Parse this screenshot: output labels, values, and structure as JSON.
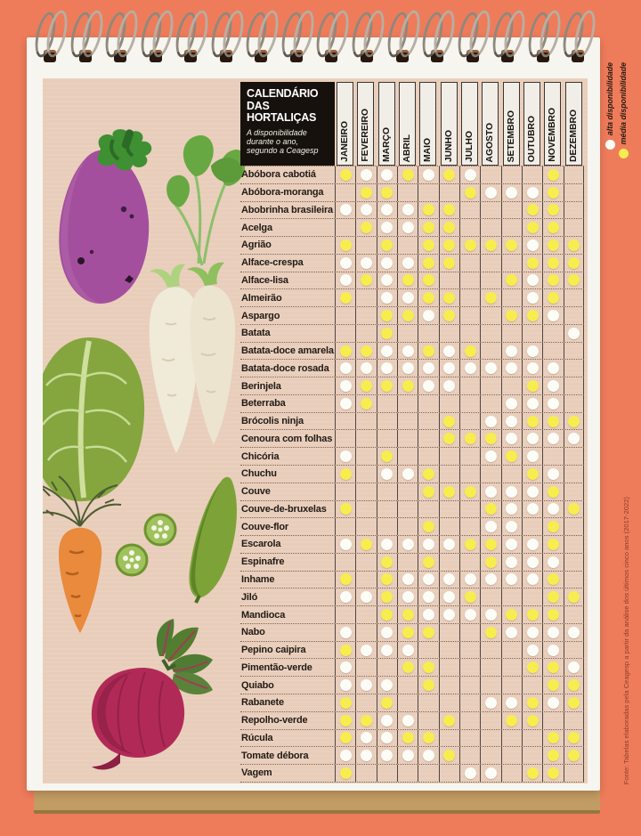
{
  "header": {
    "title_line1": "CALENDÁRIO",
    "title_line2": "DAS HORTALIÇAS",
    "subtitle": "A disponibilidade durante o ano, segundo a Ceagesp"
  },
  "legend": {
    "high_label": "alta disponibilidade",
    "medium_label": "média disponibilidade"
  },
  "months": [
    "JANEIRO",
    "FEVEREIRO",
    "MARÇO",
    "ABRIL",
    "MAIO",
    "JUNHO",
    "JULHO",
    "AGOSTO",
    "SETEMBRO",
    "OUTUBRO",
    "NOVEMBRO",
    "DEZEMBRO"
  ],
  "rows": [
    {
      "name": "Abóbora cabotiá",
      "months": [
        "media",
        "alta",
        "alta",
        "media",
        "alta",
        "media",
        "alta",
        "",
        "",
        "",
        "media",
        ""
      ]
    },
    {
      "name": "Abóbora-moranga",
      "months": [
        "",
        "media",
        "media",
        "",
        "",
        "",
        "media",
        "alta",
        "alta",
        "alta",
        "media",
        ""
      ]
    },
    {
      "name": "Abobrinha brasileira",
      "months": [
        "alta",
        "alta",
        "alta",
        "alta",
        "media",
        "media",
        "",
        "",
        "",
        "media",
        "media",
        ""
      ]
    },
    {
      "name": "Acelga",
      "months": [
        "",
        "media",
        "alta",
        "alta",
        "media",
        "media",
        "",
        "",
        "",
        "media",
        "media",
        ""
      ]
    },
    {
      "name": "Agrião",
      "months": [
        "media",
        "",
        "media",
        "",
        "media",
        "media",
        "media",
        "media",
        "media",
        "alta",
        "media",
        "media"
      ]
    },
    {
      "name": "Alface-crespa",
      "months": [
        "alta",
        "alta",
        "alta",
        "alta",
        "media",
        "media",
        "",
        "",
        "",
        "media",
        "media",
        "media"
      ]
    },
    {
      "name": "Alface-lisa",
      "months": [
        "alta",
        "media",
        "alta",
        "media",
        "media",
        "",
        "",
        "",
        "media",
        "alta",
        "media",
        "media"
      ]
    },
    {
      "name": "Almeirão",
      "months": [
        "media",
        "",
        "alta",
        "alta",
        "media",
        "media",
        "",
        "media",
        "",
        "alta",
        "media",
        ""
      ]
    },
    {
      "name": "Aspargo",
      "months": [
        "",
        "",
        "media",
        "media",
        "alta",
        "media",
        "",
        "",
        "media",
        "media",
        "alta",
        ""
      ]
    },
    {
      "name": "Batata",
      "months": [
        "",
        "",
        "media",
        "",
        "",
        "",
        "",
        "",
        "",
        "",
        "",
        "alta"
      ]
    },
    {
      "name": "Batata-doce amarela",
      "months": [
        "media",
        "media",
        "alta",
        "alta",
        "media",
        "alta",
        "media",
        "",
        "alta",
        "alta",
        "",
        ""
      ]
    },
    {
      "name": "Batata-doce rosada",
      "months": [
        "alta",
        "alta",
        "alta",
        "alta",
        "alta",
        "alta",
        "alta",
        "alta",
        "alta",
        "alta",
        "alta",
        ""
      ]
    },
    {
      "name": "Berinjela",
      "months": [
        "alta",
        "media",
        "media",
        "media",
        "alta",
        "alta",
        "",
        "",
        "",
        "media",
        "alta",
        ""
      ]
    },
    {
      "name": "Beterraba",
      "months": [
        "alta",
        "media",
        "",
        "",
        "",
        "",
        "",
        "",
        "alta",
        "alta",
        "alta",
        ""
      ]
    },
    {
      "name": "Brócolis ninja",
      "months": [
        "",
        "",
        "",
        "",
        "",
        "media",
        "",
        "alta",
        "alta",
        "media",
        "media",
        "media"
      ]
    },
    {
      "name": "Cenoura com folhas",
      "months": [
        "",
        "",
        "",
        "",
        "",
        "media",
        "media",
        "media",
        "alta",
        "alta",
        "alta",
        "alta"
      ]
    },
    {
      "name": "Chicória",
      "months": [
        "alta",
        "",
        "media",
        "",
        "",
        "",
        "",
        "alta",
        "media",
        "alta",
        "",
        ""
      ]
    },
    {
      "name": "Chuchu",
      "months": [
        "media",
        "",
        "alta",
        "alta",
        "media",
        "",
        "",
        "",
        "",
        "media",
        "alta",
        ""
      ]
    },
    {
      "name": "Couve",
      "months": [
        "",
        "",
        "",
        "",
        "media",
        "media",
        "media",
        "alta",
        "alta",
        "alta",
        "media",
        ""
      ]
    },
    {
      "name": "Couve-de-bruxelas",
      "months": [
        "media",
        "",
        "",
        "",
        "",
        "",
        "",
        "media",
        "alta",
        "alta",
        "alta",
        "media"
      ]
    },
    {
      "name": "Couve-flor",
      "months": [
        "",
        "",
        "",
        "",
        "media",
        "",
        "",
        "alta",
        "alta",
        "",
        "media",
        ""
      ]
    },
    {
      "name": "Escarola",
      "months": [
        "alta",
        "media",
        "alta",
        "alta",
        "alta",
        "alta",
        "media",
        "media",
        "alta",
        "alta",
        "media",
        ""
      ]
    },
    {
      "name": "Espinafre",
      "months": [
        "",
        "",
        "media",
        "",
        "media",
        "",
        "",
        "media",
        "alta",
        "alta",
        "alta",
        ""
      ]
    },
    {
      "name": "Inhame",
      "months": [
        "media",
        "",
        "media",
        "alta",
        "alta",
        "alta",
        "alta",
        "alta",
        "alta",
        "alta",
        "media",
        ""
      ]
    },
    {
      "name": "Jiló",
      "months": [
        "alta",
        "alta",
        "media",
        "alta",
        "alta",
        "alta",
        "media",
        "",
        "",
        "",
        "media",
        "media"
      ]
    },
    {
      "name": "Mandioca",
      "months": [
        "",
        "",
        "media",
        "media",
        "alta",
        "alta",
        "alta",
        "alta",
        "media",
        "media",
        "media",
        ""
      ]
    },
    {
      "name": "Nabo",
      "months": [
        "alta",
        "",
        "alta",
        "media",
        "media",
        "",
        "",
        "media",
        "alta",
        "alta",
        "alta",
        "alta"
      ]
    },
    {
      "name": "Pepino caipira",
      "months": [
        "media",
        "alta",
        "alta",
        "alta",
        "",
        "",
        "",
        "",
        "",
        "alta",
        "alta",
        ""
      ]
    },
    {
      "name": "Pimentão-verde",
      "months": [
        "alta",
        "",
        "",
        "media",
        "media",
        "",
        "",
        "",
        "",
        "media",
        "media",
        "alta"
      ]
    },
    {
      "name": "Quiabo",
      "months": [
        "alta",
        "alta",
        "alta",
        "",
        "media",
        "",
        "",
        "",
        "",
        "",
        "media",
        "media"
      ]
    },
    {
      "name": "Rabanete",
      "months": [
        "media",
        "",
        "media",
        "",
        "",
        "",
        "",
        "alta",
        "alta",
        "media",
        "alta",
        "media"
      ]
    },
    {
      "name": "Repolho-verde",
      "months": [
        "media",
        "media",
        "alta",
        "alta",
        "",
        "media",
        "",
        "",
        "media",
        "media",
        "",
        ""
      ]
    },
    {
      "name": "Rúcula",
      "months": [
        "media",
        "alta",
        "alta",
        "media",
        "media",
        "",
        "",
        "",
        "",
        "",
        "media",
        "media"
      ]
    },
    {
      "name": "Tomate débora",
      "months": [
        "alta",
        "alta",
        "alta",
        "alta",
        "alta",
        "media",
        "",
        "",
        "",
        "",
        "media",
        "media"
      ]
    },
    {
      "name": "Vagem",
      "months": [
        "media",
        "",
        "",
        "",
        "",
        "",
        "alta",
        "alta",
        "",
        "media",
        "media",
        ""
      ]
    }
  ],
  "source": "Fonte: Tabelas elaboradas pela Ceagesp a partir da análise dos últimos cinco anos (2017-2022)",
  "colors": {
    "alta": "#FDFDF8",
    "media": "#F7ED4E",
    "background": "#EE7C5B",
    "page": "#E9CDBB",
    "header_bg": "#16110C",
    "month_strip": "#F1EEE7",
    "cardboard": "#C19C63"
  },
  "illustrations": [
    "eggplant",
    "arugula-leaves",
    "daikon-radish",
    "leafy-greens",
    "carrot",
    "okra",
    "beetroot"
  ]
}
